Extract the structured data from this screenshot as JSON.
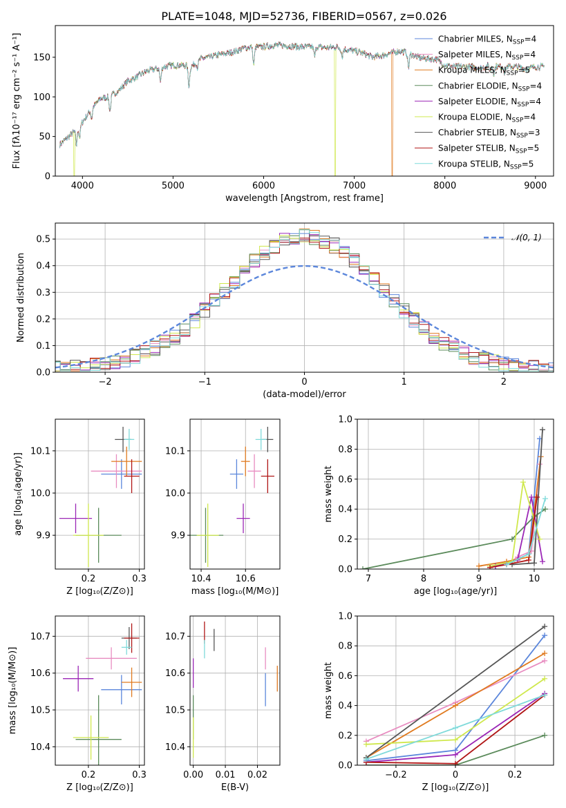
{
  "figure_title": "PLATE=1048, MJD=52736, FIBERID=0567, z=0.026",
  "models": [
    {
      "name": "Chabrier MILES",
      "nssp": "4",
      "color": "#5b86db"
    },
    {
      "name": "Salpeter MILES",
      "nssp": "4",
      "color": "#e88cc0"
    },
    {
      "name": "Kroupa MILES",
      "nssp": "5",
      "color": "#e07a1f"
    },
    {
      "name": "Chabrier ELODIE",
      "nssp": "4",
      "color": "#5a8a5a"
    },
    {
      "name": "Salpeter ELODIE",
      "nssp": "4",
      "color": "#9b26b6"
    },
    {
      "name": "Kroupa ELODIE",
      "nssp": "4",
      "color": "#cfe84c"
    },
    {
      "name": "Chabrier STELIB",
      "nssp": "3",
      "color": "#555555"
    },
    {
      "name": "Salpeter STELIB",
      "nssp": "5",
      "color": "#b01515"
    },
    {
      "name": "Kroupa STELIB",
      "nssp": "5",
      "color": "#7fdada"
    }
  ],
  "legend_sub": "SSP",
  "legend_prefix": "N",
  "chart_data": [
    {
      "id": "spectrum",
      "type": "line",
      "xlabel": "wavelength [Angstrom, rest frame]",
      "ylabel": "Flux [fλ10⁻¹⁷ erg cm⁻² s⁻¹ A⁻¹]",
      "xlim": [
        3700,
        9200
      ],
      "ylim": [
        0,
        190
      ],
      "xticks": [
        4000,
        5000,
        6000,
        7000,
        8000,
        9000
      ],
      "yticks": [
        0,
        50,
        100,
        150
      ],
      "grid": false,
      "legend": "right",
      "continuum": [
        [
          3750,
          40
        ],
        [
          3900,
          55
        ],
        [
          4000,
          68
        ],
        [
          4100,
          85
        ],
        [
          4200,
          98
        ],
        [
          4300,
          100
        ],
        [
          4400,
          108
        ],
        [
          4500,
          120
        ],
        [
          4600,
          125
        ],
        [
          4700,
          132
        ],
        [
          4800,
          135
        ],
        [
          4900,
          138
        ],
        [
          5000,
          140
        ],
        [
          5100,
          140
        ],
        [
          5200,
          138
        ],
        [
          5300,
          148
        ],
        [
          5400,
          150
        ],
        [
          5500,
          153
        ],
        [
          5600,
          155
        ],
        [
          5700,
          158
        ],
        [
          5800,
          162
        ],
        [
          5900,
          163
        ],
        [
          6000,
          163
        ],
        [
          6100,
          165
        ],
        [
          6200,
          165
        ],
        [
          6300,
          164
        ],
        [
          6400,
          163
        ],
        [
          6500,
          163
        ],
        [
          6600,
          163
        ],
        [
          6700,
          162
        ],
        [
          6800,
          163
        ],
        [
          6900,
          160
        ],
        [
          7000,
          158
        ],
        [
          7100,
          155
        ],
        [
          7200,
          150
        ],
        [
          7300,
          152
        ],
        [
          7400,
          155
        ],
        [
          7500,
          158
        ],
        [
          7600,
          155
        ],
        [
          7700,
          150
        ],
        [
          7800,
          148
        ],
        [
          7900,
          148
        ],
        [
          8000,
          140
        ],
        [
          8100,
          138
        ],
        [
          8200,
          138
        ],
        [
          8300,
          138
        ],
        [
          8400,
          136
        ],
        [
          8500,
          140
        ],
        [
          8600,
          138
        ],
        [
          8700,
          138
        ],
        [
          8800,
          138
        ],
        [
          8900,
          135
        ],
        [
          9000,
          138
        ],
        [
          9100,
          138
        ]
      ],
      "features": [
        [
          3934,
          -20
        ],
        [
          3969,
          -15
        ],
        [
          4102,
          -12
        ],
        [
          4304,
          -18
        ],
        [
          4861,
          -18
        ],
        [
          5175,
          -25
        ],
        [
          5270,
          -8
        ],
        [
          5890,
          -22
        ],
        [
          6563,
          -12
        ],
        [
          6867,
          -10
        ],
        [
          7600,
          -18
        ],
        [
          8500,
          -8
        ],
        [
          8542,
          -10
        ],
        [
          8662,
          -8
        ]
      ],
      "dropouts": [
        {
          "x": 3910,
          "model": 5
        },
        {
          "x": 6790,
          "model": 5
        },
        {
          "x": 7420,
          "model": 2
        }
      ]
    },
    {
      "id": "residuals",
      "type": "line",
      "xlabel": "(data-model)/error",
      "ylabel": "Normed distribution",
      "xlim": [
        -2.5,
        2.5
      ],
      "ylim": [
        0,
        0.56
      ],
      "xticks": [
        -2,
        -1,
        0,
        1,
        2
      ],
      "yticks": [
        0.0,
        0.1,
        0.2,
        0.3,
        0.4,
        0.5
      ],
      "grid": true,
      "legend": "top-right",
      "legend_label": "𝒩(0, 1)",
      "gaussian_color": "#5b86db",
      "bin_width": 0.1
    },
    {
      "id": "age-vs-Z",
      "type": "scatter",
      "xlabel": "Z [log₁₀(Z/Z⊙)]",
      "ylabel": "age  [log₁₀(age/yr)]",
      "xlim": [
        0.135,
        0.31
      ],
      "ylim": [
        9.82,
        10.175
      ],
      "xticks": [
        0.2,
        0.3
      ],
      "yticks": [
        9.9,
        10.0,
        10.1
      ],
      "grid": true,
      "points": [
        {
          "model": 0,
          "x": 0.265,
          "y": 10.045,
          "xerr": 0.04,
          "yerr": 0.035
        },
        {
          "model": 1,
          "x": 0.255,
          "y": 10.052,
          "xerr": 0.05,
          "yerr": 0.04
        },
        {
          "model": 2,
          "x": 0.275,
          "y": 10.075,
          "xerr": 0.03,
          "yerr": 0.035
        },
        {
          "model": 3,
          "x": 0.22,
          "y": 9.9,
          "xerr": 0.045,
          "yerr": 0.065
        },
        {
          "model": 4,
          "x": 0.175,
          "y": 9.94,
          "xerr": 0.032,
          "yerr": 0.035
        },
        {
          "model": 5,
          "x": 0.2,
          "y": 9.9,
          "xerr": 0.03,
          "yerr": 0.075
        },
        {
          "model": 6,
          "x": 0.268,
          "y": 10.127,
          "xerr": 0.016,
          "yerr": 0.03
        },
        {
          "model": 7,
          "x": 0.285,
          "y": 10.04,
          "xerr": 0.015,
          "yerr": 0.04
        },
        {
          "model": 8,
          "x": 0.28,
          "y": 10.127,
          "xerr": 0.01,
          "yerr": 0.025
        }
      ]
    },
    {
      "id": "age-vs-mass",
      "type": "scatter",
      "xlabel": "mass [log₁₀(M/M⊙)]",
      "ylabel": "",
      "xlim": [
        10.35,
        10.755
      ],
      "ylim": [
        9.82,
        10.175
      ],
      "xticks": [
        10.4,
        10.6
      ],
      "yticks": [
        9.9,
        10.0,
        10.1
      ],
      "grid": true,
      "points": [
        {
          "model": 0,
          "x": 10.56,
          "y": 10.045,
          "xerr": 0.03,
          "yerr": 0.035
        },
        {
          "model": 1,
          "x": 10.64,
          "y": 10.052,
          "xerr": 0.03,
          "yerr": 0.04
        },
        {
          "model": 2,
          "x": 10.6,
          "y": 10.075,
          "xerr": 0.02,
          "yerr": 0.035
        },
        {
          "model": 3,
          "x": 10.42,
          "y": 9.9,
          "xerr": 0.08,
          "yerr": 0.065
        },
        {
          "model": 4,
          "x": 10.59,
          "y": 9.94,
          "xerr": 0.03,
          "yerr": 0.035
        },
        {
          "model": 5,
          "x": 10.43,
          "y": 9.9,
          "xerr": 0.05,
          "yerr": 0.075
        },
        {
          "model": 6,
          "x": 10.7,
          "y": 10.127,
          "xerr": 0.025,
          "yerr": 0.03
        },
        {
          "model": 7,
          "x": 10.7,
          "y": 10.04,
          "xerr": 0.03,
          "yerr": 0.04
        },
        {
          "model": 8,
          "x": 10.67,
          "y": 10.127,
          "xerr": 0.025,
          "yerr": 0.025
        }
      ]
    },
    {
      "id": "mass-weight-vs-age",
      "type": "line",
      "xlabel": "age  [log₁₀(age/yr)]",
      "ylabel": "mass weight",
      "xlim": [
        6.8,
        10.35
      ],
      "ylim": [
        0,
        1.0
      ],
      "xticks": [
        7,
        8,
        9,
        10
      ],
      "yticks": [
        0.0,
        0.2,
        0.4,
        0.6,
        0.8,
        1.0
      ],
      "grid": true,
      "series": [
        {
          "model": 0,
          "x": [
            9.3,
            9.6,
            9.9,
            10.1
          ],
          "y": [
            0.02,
            0.05,
            0.1,
            0.87
          ]
        },
        {
          "model": 1,
          "x": [
            9.5,
            9.7,
            9.95,
            10.1
          ],
          "y": [
            0.03,
            0.08,
            0.12,
            0.7
          ]
        },
        {
          "model": 2,
          "x": [
            9.0,
            9.5,
            9.9,
            10.12
          ],
          "y": [
            0.02,
            0.05,
            0.08,
            0.75
          ]
        },
        {
          "model": 3,
          "x": [
            6.9,
            9.6,
            10.0,
            10.2
          ],
          "y": [
            0.0,
            0.2,
            0.35,
            0.4
          ]
        },
        {
          "model": 4,
          "x": [
            9.3,
            9.7,
            9.95,
            10.15
          ],
          "y": [
            0.02,
            0.06,
            0.48,
            0.05
          ]
        },
        {
          "model": 5,
          "x": [
            9.2,
            9.6,
            9.8,
            10.1
          ],
          "y": [
            0.02,
            0.05,
            0.58,
            0.2
          ]
        },
        {
          "model": 6,
          "x": [
            9.6,
            10.0,
            10.15
          ],
          "y": [
            0.03,
            0.04,
            0.93
          ]
        },
        {
          "model": 7,
          "x": [
            9.2,
            9.5,
            9.9,
            10.05
          ],
          "y": [
            0.01,
            0.03,
            0.06,
            0.48
          ]
        },
        {
          "model": 8,
          "x": [
            9.5,
            9.9,
            10.2
          ],
          "y": [
            0.03,
            0.1,
            0.47
          ]
        }
      ]
    },
    {
      "id": "mass-vs-Z",
      "type": "scatter",
      "xlabel": "Z [log₁₀(Z/Z⊙)]",
      "ylabel": "mass [log₁₀(M/M⊙)]",
      "xlim": [
        0.135,
        0.31
      ],
      "ylim": [
        10.35,
        10.755
      ],
      "xticks": [
        0.2,
        0.3
      ],
      "yticks": [
        10.4,
        10.5,
        10.6,
        10.7
      ],
      "grid": true,
      "points": [
        {
          "model": 0,
          "x": 0.265,
          "y": 10.555,
          "xerr": 0.04,
          "yerr": 0.04
        },
        {
          "model": 1,
          "x": 0.245,
          "y": 10.64,
          "xerr": 0.05,
          "yerr": 0.03
        },
        {
          "model": 2,
          "x": 0.285,
          "y": 10.575,
          "xerr": 0.02,
          "yerr": 0.04
        },
        {
          "model": 3,
          "x": 0.22,
          "y": 10.42,
          "xerr": 0.045,
          "yerr": 0.12
        },
        {
          "model": 4,
          "x": 0.18,
          "y": 10.585,
          "xerr": 0.03,
          "yerr": 0.035
        },
        {
          "model": 5,
          "x": 0.205,
          "y": 10.425,
          "xerr": 0.035,
          "yerr": 0.06
        },
        {
          "model": 6,
          "x": 0.28,
          "y": 10.695,
          "xerr": 0.015,
          "yerr": 0.03
        },
        {
          "model": 7,
          "x": 0.285,
          "y": 10.695,
          "xerr": 0.015,
          "yerr": 0.04
        },
        {
          "model": 8,
          "x": 0.275,
          "y": 10.67,
          "xerr": 0.01,
          "yerr": 0.02
        }
      ]
    },
    {
      "id": "mass-vs-ebv",
      "type": "scatter",
      "xlabel": "E(B-V)",
      "ylabel": "",
      "xlim": [
        -0.001,
        0.027
      ],
      "ylim": [
        10.35,
        10.755
      ],
      "xticks": [
        0.0,
        0.01,
        0.02
      ],
      "yticks": [
        10.4,
        10.5,
        10.6,
        10.7
      ],
      "grid": true,
      "points": [
        {
          "model": 0,
          "x": 0.0225,
          "y": 10.555,
          "xerr": 0,
          "yerr": 0.045
        },
        {
          "model": 1,
          "x": 0.0225,
          "y": 10.64,
          "xerr": 0,
          "yerr": 0.03
        },
        {
          "model": 2,
          "x": 0.0262,
          "y": 10.585,
          "xerr": 0,
          "yerr": 0.035
        },
        {
          "model": 3,
          "x": 0.0,
          "y": 10.48,
          "xerr": 0,
          "yerr": 0.06
        },
        {
          "model": 4,
          "x": 0.0,
          "y": 10.6,
          "xerr": 0,
          "yerr": 0.04
        },
        {
          "model": 5,
          "x": 0.0,
          "y": 10.425,
          "xerr": 0,
          "yerr": 0.055
        },
        {
          "model": 6,
          "x": 0.0065,
          "y": 10.69,
          "xerr": 0,
          "yerr": 0.03
        },
        {
          "model": 7,
          "x": 0.0035,
          "y": 10.71,
          "xerr": 0,
          "yerr": 0.03
        },
        {
          "model": 8,
          "x": 0.0035,
          "y": 10.665,
          "xerr": 0,
          "yerr": 0.025
        }
      ]
    },
    {
      "id": "mass-weight-vs-Z",
      "type": "line",
      "xlabel": "Z [log₁₀(Z/Z⊙)]",
      "ylabel": "mass weight",
      "xlim": [
        -0.33,
        0.33
      ],
      "ylim": [
        0,
        1.0
      ],
      "xticks": [
        -0.2,
        0.0,
        0.2
      ],
      "yticks": [
        0.0,
        0.2,
        0.4,
        0.6,
        0.8,
        1.0
      ],
      "grid": true,
      "series": [
        {
          "model": 0,
          "x": [
            -0.3,
            0.0,
            0.3
          ],
          "y": [
            0.03,
            0.1,
            0.87
          ]
        },
        {
          "model": 1,
          "x": [
            -0.3,
            0.0,
            0.3
          ],
          "y": [
            0.16,
            0.42,
            0.7
          ]
        },
        {
          "model": 2,
          "x": [
            -0.3,
            0.0,
            0.3
          ],
          "y": [
            0.05,
            0.4,
            0.75
          ]
        },
        {
          "model": 3,
          "x": [
            -0.3,
            0.0,
            0.3
          ],
          "y": [
            0.0,
            0.0,
            0.2
          ]
        },
        {
          "model": 4,
          "x": [
            -0.3,
            0.0,
            0.3
          ],
          "y": [
            0.02,
            0.07,
            0.48
          ]
        },
        {
          "model": 5,
          "x": [
            -0.3,
            0.0,
            0.3
          ],
          "y": [
            0.14,
            0.17,
            0.58
          ]
        },
        {
          "model": 6,
          "x": [
            -0.3,
            0.3
          ],
          "y": [
            0.05,
            0.93
          ]
        },
        {
          "model": 7,
          "x": [
            -0.3,
            0.0,
            0.3
          ],
          "y": [
            0.02,
            0.01,
            0.47
          ]
        },
        {
          "model": 8,
          "x": [
            -0.3,
            0.0,
            0.3
          ],
          "y": [
            0.04,
            0.25,
            0.47
          ]
        }
      ]
    }
  ]
}
